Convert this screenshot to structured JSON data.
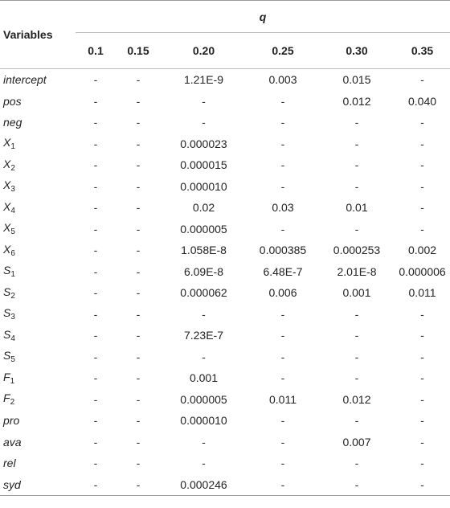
{
  "header": {
    "variables_label": "Variables",
    "q_label": "q",
    "q_values": [
      "0.1",
      "0.15",
      "0.20",
      "0.25",
      "0.30",
      "0.35"
    ]
  },
  "rows": [
    {
      "name": "intercept",
      "sub": "",
      "cells": [
        "-",
        "-",
        "1.21E-9",
        "0.003",
        "0.015",
        "-"
      ]
    },
    {
      "name": "pos",
      "sub": "",
      "cells": [
        "-",
        "-",
        "-",
        "-",
        "0.012",
        "0.040"
      ]
    },
    {
      "name": "neg",
      "sub": "",
      "cells": [
        "-",
        "-",
        "-",
        "-",
        "-",
        "-"
      ]
    },
    {
      "name": "X",
      "sub": "1",
      "cells": [
        "-",
        "-",
        "0.000023",
        "-",
        "-",
        "-"
      ]
    },
    {
      "name": "X",
      "sub": "2",
      "cells": [
        "-",
        "-",
        "0.000015",
        "-",
        "-",
        "-"
      ]
    },
    {
      "name": "X",
      "sub": "3",
      "cells": [
        "-",
        "-",
        "0.000010",
        "-",
        "-",
        "-"
      ]
    },
    {
      "name": "X",
      "sub": "4",
      "cells": [
        "-",
        "-",
        "0.02",
        "0.03",
        "0.01",
        "-"
      ]
    },
    {
      "name": "X",
      "sub": "5",
      "cells": [
        "-",
        "-",
        "0.000005",
        "-",
        "-",
        "-"
      ]
    },
    {
      "name": "X",
      "sub": "6",
      "cells": [
        "-",
        "-",
        "1.058E-8",
        "0.000385",
        "0.000253",
        "0.002"
      ]
    },
    {
      "name": "S",
      "sub": "1",
      "cells": [
        "-",
        "-",
        "6.09E-8",
        "6.48E-7",
        "2.01E-8",
        "0.000006"
      ]
    },
    {
      "name": "S",
      "sub": "2",
      "cells": [
        "-",
        "-",
        "0.000062",
        "0.006",
        "0.001",
        "0.011"
      ]
    },
    {
      "name": "S",
      "sub": "3",
      "cells": [
        "-",
        "-",
        "-",
        "-",
        "-",
        "-"
      ]
    },
    {
      "name": "S",
      "sub": "4",
      "cells": [
        "-",
        "-",
        "7.23E-7",
        "-",
        "-",
        "-"
      ]
    },
    {
      "name": "S",
      "sub": "5",
      "cells": [
        "-",
        "-",
        "-",
        "-",
        "-",
        "-"
      ]
    },
    {
      "name": "F",
      "sub": "1",
      "cells": [
        "-",
        "-",
        "0.001",
        "-",
        "-",
        "-"
      ]
    },
    {
      "name": "F",
      "sub": "2",
      "cells": [
        "-",
        "-",
        "0.000005",
        "0.011",
        "0.012",
        "-"
      ]
    },
    {
      "name": "pro",
      "sub": "",
      "cells": [
        "-",
        "-",
        "0.000010",
        "-",
        "-",
        "-"
      ]
    },
    {
      "name": "ava",
      "sub": "",
      "cells": [
        "-",
        "-",
        "-",
        "-",
        "0.007",
        "-"
      ]
    },
    {
      "name": "rel",
      "sub": "",
      "cells": [
        "-",
        "-",
        "-",
        "-",
        "-",
        "-"
      ]
    },
    {
      "name": "syd",
      "sub": "",
      "cells": [
        "-",
        "-",
        "0.000246",
        "-",
        "-",
        "-"
      ]
    }
  ]
}
